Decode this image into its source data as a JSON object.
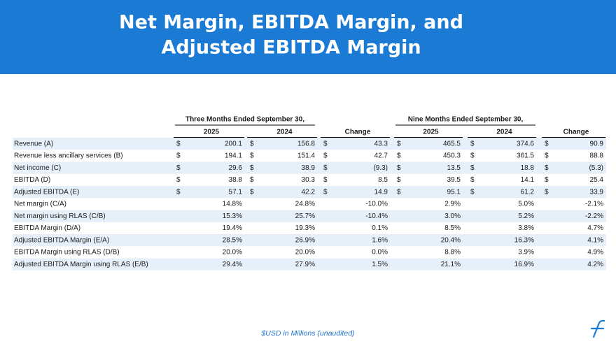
{
  "header": {
    "title_lines": [
      "Net Margin, EBITDA Margin, and",
      "Adjusted EBITDA Margin"
    ]
  },
  "table": {
    "group_headers": [
      "Three Months Ended September 30,",
      "Nine Months Ended September 30,"
    ],
    "column_headers": [
      "2025",
      "2024",
      "Change",
      "2025",
      "2024",
      "Change"
    ],
    "currency_symbol": "$",
    "rows": [
      {
        "label": "Revenue (A)",
        "currency": true,
        "values": [
          "200.1",
          "156.8",
          "43.3",
          "465.5",
          "374.6",
          "90.9"
        ]
      },
      {
        "label": "Revenue less ancillary services (B)",
        "currency": true,
        "values": [
          "194.1",
          "151.4",
          "42.7",
          "450.3",
          "361.5",
          "88.8"
        ]
      },
      {
        "label": "Net income (C)",
        "currency": true,
        "values": [
          "29.6",
          "38.9",
          "(9.3)",
          "13.5",
          "18.8",
          "(5.3)"
        ]
      },
      {
        "label": "EBITDA (D)",
        "currency": true,
        "values": [
          "38.8",
          "30.3",
          "8.5",
          "39.5",
          "14.1",
          "25.4"
        ]
      },
      {
        "label": "Adjusted EBITDA (E)",
        "currency": true,
        "values": [
          "57.1",
          "42.2",
          "14.9",
          "95.1",
          "61.2",
          "33.9"
        ]
      },
      {
        "label": "Net margin (C/A)",
        "currency": false,
        "values": [
          "14.8%",
          "24.8%",
          "-10.0%",
          "2.9%",
          "5.0%",
          "-2.1%"
        ]
      },
      {
        "label": "Net margin using RLAS (C/B)",
        "currency": false,
        "values": [
          "15.3%",
          "25.7%",
          "-10.4%",
          "3.0%",
          "5.2%",
          "-2.2%"
        ]
      },
      {
        "label": "EBITDA Margin (D/A)",
        "currency": false,
        "values": [
          "19.4%",
          "19.3%",
          "0.1%",
          "8.5%",
          "3.8%",
          "4.7%"
        ]
      },
      {
        "label": "Adjusted EBITDA Margin (E/A)",
        "currency": false,
        "values": [
          "28.5%",
          "26.9%",
          "1.6%",
          "20.4%",
          "16.3%",
          "4.1%"
        ]
      },
      {
        "label": "EBITDA Margin using RLAS (D/B)",
        "currency": false,
        "values": [
          "20.0%",
          "20.0%",
          "0.0%",
          "8.8%",
          "3.9%",
          "4.9%"
        ]
      },
      {
        "label": "Adjusted EBITDA Margin using RLAS (E/B)",
        "currency": false,
        "values": [
          "29.4%",
          "27.9%",
          "1.5%",
          "21.1%",
          "16.9%",
          "4.2%"
        ]
      }
    ]
  },
  "footer": {
    "note": "$USD in Millions (unaudited)"
  }
}
